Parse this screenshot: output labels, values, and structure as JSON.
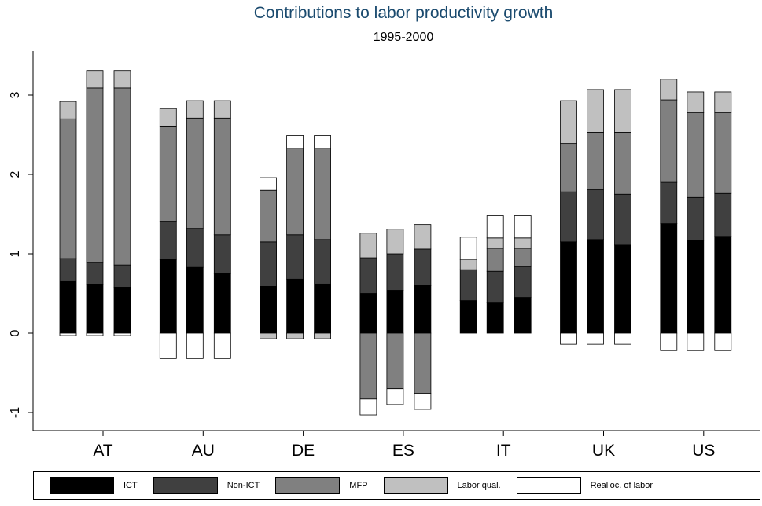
{
  "chart_data": {
    "type": "bar",
    "stacked": true,
    "title": "Contributions to labor productivity growth",
    "subtitle": "1995-2000",
    "xlabel": "",
    "ylabel": "",
    "ylim": [
      -1.2,
      3.5
    ],
    "yticks": [
      "-1",
      "0",
      "1",
      "2",
      "3"
    ],
    "categories": [
      "AT",
      "AU",
      "DE",
      "ES",
      "IT",
      "UK",
      "US"
    ],
    "bars_per_category": 3,
    "grid": false,
    "legend_position": "bottom",
    "series": [
      {
        "name": "ICT",
        "color": "#000000",
        "values": [
          [
            0.66,
            0.61,
            0.58
          ],
          [
            0.93,
            0.83,
            0.75
          ],
          [
            0.59,
            0.68,
            0.62
          ],
          [
            0.5,
            0.54,
            0.6
          ],
          [
            0.41,
            0.39,
            0.45
          ],
          [
            1.15,
            1.18,
            1.11
          ],
          [
            1.38,
            1.17,
            1.22
          ]
        ]
      },
      {
        "name": "Non-ICT",
        "color": "#404040",
        "values": [
          [
            0.28,
            0.28,
            0.28
          ],
          [
            0.48,
            0.49,
            0.49
          ],
          [
            0.56,
            0.56,
            0.56
          ],
          [
            0.45,
            0.46,
            0.46
          ],
          [
            0.39,
            0.39,
            0.39
          ],
          [
            0.63,
            0.63,
            0.64
          ],
          [
            0.52,
            0.54,
            0.54
          ]
        ]
      },
      {
        "name": "MFP",
        "color": "#808080",
        "values": [
          [
            1.76,
            2.2,
            2.23
          ],
          [
            1.2,
            1.39,
            1.47
          ],
          [
            0.65,
            1.09,
            1.15
          ],
          [
            -0.83,
            -0.7,
            -0.76
          ],
          [
            0.0,
            0.29,
            0.23
          ],
          [
            0.61,
            0.72,
            0.78
          ],
          [
            1.04,
            1.07,
            1.02
          ]
        ]
      },
      {
        "name": "Labor qual.",
        "color": "#c0c0c0",
        "values": [
          [
            0.22,
            0.22,
            0.22
          ],
          [
            0.22,
            0.22,
            0.22
          ],
          [
            -0.07,
            -0.07,
            -0.07
          ],
          [
            0.31,
            0.31,
            0.31
          ],
          [
            0.13,
            0.13,
            0.13
          ],
          [
            0.54,
            0.54,
            0.54
          ],
          [
            0.26,
            0.26,
            0.26
          ]
        ]
      },
      {
        "name": "Realloc. of labor",
        "color": "#ffffff",
        "values": [
          [
            -0.03,
            -0.03,
            -0.03
          ],
          [
            -0.32,
            -0.32,
            -0.32
          ],
          [
            0.16,
            0.16,
            0.16
          ],
          [
            -0.2,
            -0.2,
            -0.2
          ],
          [
            0.28,
            0.28,
            0.28
          ],
          [
            -0.14,
            -0.14,
            -0.14
          ],
          [
            -0.22,
            -0.22,
            -0.22
          ]
        ]
      }
    ]
  }
}
